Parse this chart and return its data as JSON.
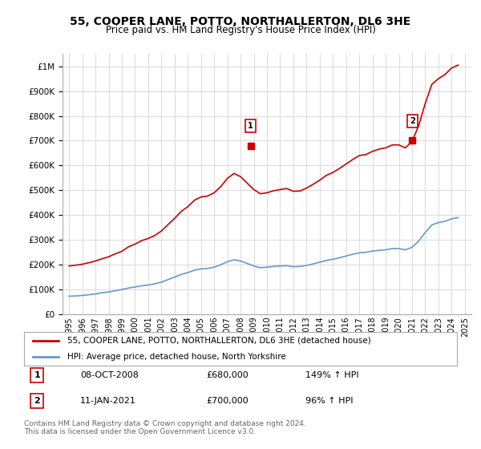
{
  "title": "55, COOPER LANE, POTTO, NORTHALLERTON, DL6 3HE",
  "subtitle": "Price paid vs. HM Land Registry's House Price Index (HPI)",
  "ylabel_ticks": [
    "£0",
    "£100K",
    "£200K",
    "£300K",
    "£400K",
    "£500K",
    "£600K",
    "£700K",
    "£800K",
    "£900K",
    "£1M"
  ],
  "ytick_values": [
    0,
    100000,
    200000,
    300000,
    400000,
    500000,
    600000,
    700000,
    800000,
    900000,
    1000000
  ],
  "ylim": [
    0,
    1050000
  ],
  "xlim_start": 1995,
  "xlim_end": 2025.5,
  "xtick_labels": [
    "1995",
    "1996",
    "1997",
    "1998",
    "1999",
    "2000",
    "2001",
    "2002",
    "2003",
    "2004",
    "2005",
    "2006",
    "2007",
    "2008",
    "2009",
    "2010",
    "2011",
    "2012",
    "2013",
    "2014",
    "2015",
    "2016",
    "2017",
    "2018",
    "2019",
    "2020",
    "2021",
    "2022",
    "2023",
    "2024",
    "2025"
  ],
  "legend_entry1": "55, COOPER LANE, POTTO, NORTHALLERTON, DL6 3HE (detached house)",
  "legend_entry2": "HPI: Average price, detached house, North Yorkshire",
  "sale1_label": "1",
  "sale1_date": "08-OCT-2008",
  "sale1_price": "£680,000",
  "sale1_hpi": "149% ↑ HPI",
  "sale1_x": 2008.77,
  "sale1_y": 680000,
  "sale2_label": "2",
  "sale2_date": "11-JAN-2021",
  "sale2_price": "£700,000",
  "sale2_hpi": "96% ↑ HPI",
  "sale2_x": 2021.03,
  "sale2_y": 700000,
  "footer": "Contains HM Land Registry data © Crown copyright and database right 2024.\nThis data is licensed under the Open Government Licence v3.0.",
  "red_color": "#cc0000",
  "blue_color": "#6699cc",
  "background_color": "#ffffff",
  "grid_color": "#dddddd",
  "hpi_x": [
    1995.0,
    1995.5,
    1996.0,
    1996.5,
    1997.0,
    1997.5,
    1998.0,
    1998.5,
    1999.0,
    1999.5,
    2000.0,
    2000.5,
    2001.0,
    2001.5,
    2002.0,
    2002.5,
    2003.0,
    2003.5,
    2004.0,
    2004.5,
    2005.0,
    2005.5,
    2006.0,
    2006.5,
    2007.0,
    2007.5,
    2008.0,
    2008.5,
    2009.0,
    2009.5,
    2010.0,
    2010.5,
    2011.0,
    2011.5,
    2012.0,
    2012.5,
    2013.0,
    2013.5,
    2014.0,
    2014.5,
    2015.0,
    2015.5,
    2016.0,
    2016.5,
    2017.0,
    2017.5,
    2018.0,
    2018.5,
    2019.0,
    2019.5,
    2020.0,
    2020.5,
    2021.0,
    2021.5,
    2022.0,
    2022.5,
    2023.0,
    2023.5,
    2024.0,
    2024.5
  ],
  "hpi_y": [
    73000,
    74000,
    76000,
    79000,
    82000,
    87000,
    90000,
    95000,
    100000,
    106000,
    110000,
    115000,
    118000,
    123000,
    130000,
    140000,
    150000,
    161000,
    168000,
    178000,
    183000,
    185000,
    190000,
    200000,
    212000,
    220000,
    215000,
    205000,
    195000,
    188000,
    190000,
    193000,
    195000,
    196000,
    192000,
    193000,
    197000,
    203000,
    210000,
    217000,
    222000,
    228000,
    235000,
    242000,
    248000,
    250000,
    255000,
    258000,
    260000,
    265000,
    265000,
    260000,
    270000,
    295000,
    330000,
    360000,
    370000,
    375000,
    385000,
    390000
  ],
  "red_x": [
    1995.0,
    1995.5,
    1996.0,
    1996.5,
    1997.0,
    1997.5,
    1998.0,
    1998.5,
    1999.0,
    1999.5,
    2000.0,
    2000.5,
    2001.0,
    2001.5,
    2002.0,
    2002.5,
    2003.0,
    2003.5,
    2004.0,
    2004.5,
    2005.0,
    2005.5,
    2006.0,
    2006.5,
    2007.0,
    2007.5,
    2008.0,
    2008.5,
    2009.0,
    2009.5,
    2010.0,
    2010.5,
    2011.0,
    2011.5,
    2012.0,
    2012.5,
    2013.0,
    2013.5,
    2014.0,
    2014.5,
    2015.0,
    2015.5,
    2016.0,
    2016.5,
    2017.0,
    2017.5,
    2018.0,
    2018.5,
    2019.0,
    2019.5,
    2020.0,
    2020.5,
    2021.0,
    2021.5,
    2022.0,
    2022.5,
    2023.0,
    2023.5,
    2024.0,
    2024.5
  ],
  "red_y": [
    195000,
    198000,
    202000,
    208000,
    215000,
    224000,
    232000,
    244000,
    254000,
    272000,
    283000,
    297000,
    306000,
    318000,
    336000,
    362000,
    387000,
    415000,
    434000,
    460000,
    473000,
    477000,
    490000,
    515000,
    548000,
    568000,
    555000,
    529000,
    503000,
    486000,
    490000,
    498000,
    503000,
    507000,
    496000,
    497000,
    509000,
    524000,
    541000,
    560000,
    572000,
    588000,
    606000,
    624000,
    640000,
    644000,
    657000,
    666000,
    671000,
    683000,
    683000,
    671000,
    697000,
    760000,
    850000,
    927000,
    950000,
    967000,
    993000,
    1005000
  ]
}
